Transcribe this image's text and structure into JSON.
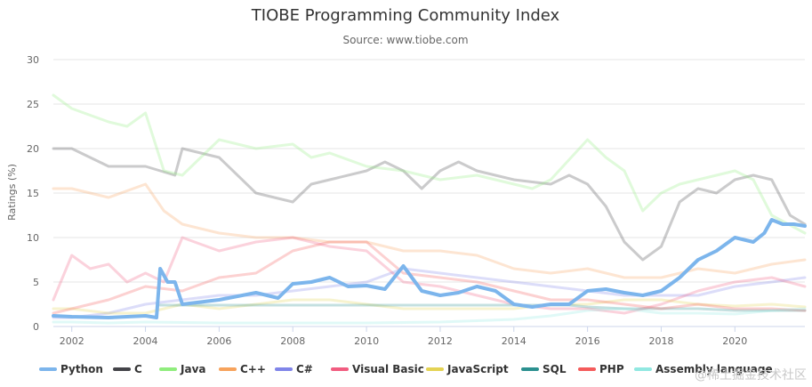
{
  "chart_data": {
    "type": "line",
    "title": "TIOBE Programming Community Index",
    "subtitle": "Source: www.tiobe.com",
    "ylabel": "Ratings (%)",
    "xlabel": "",
    "xlim": [
      2001.5,
      2021.9
    ],
    "ylim": [
      0,
      30
    ],
    "x_ticks": [
      2002,
      2004,
      2006,
      2008,
      2010,
      2012,
      2014,
      2016,
      2018,
      2020
    ],
    "y_ticks": [
      0,
      5,
      10,
      15,
      20,
      25,
      30
    ],
    "grid": true,
    "legend_position": "bottom",
    "series": [
      {
        "name": "Python",
        "color": "#7cb5ec",
        "highlight": true,
        "points": [
          [
            2001.5,
            1.2
          ],
          [
            2002,
            1.1
          ],
          [
            2003,
            1.0
          ],
          [
            2004,
            1.2
          ],
          [
            2004.3,
            1.0
          ],
          [
            2004.4,
            6.5
          ],
          [
            2004.6,
            5.0
          ],
          [
            2004.8,
            5.0
          ],
          [
            2005,
            2.5
          ],
          [
            2006,
            3.0
          ],
          [
            2007,
            3.8
          ],
          [
            2007.6,
            3.2
          ],
          [
            2008,
            4.8
          ],
          [
            2008.5,
            5.0
          ],
          [
            2009,
            5.5
          ],
          [
            2009.5,
            4.5
          ],
          [
            2010,
            4.6
          ],
          [
            2010.5,
            4.2
          ],
          [
            2011,
            6.8
          ],
          [
            2011.5,
            4.0
          ],
          [
            2012,
            3.5
          ],
          [
            2012.5,
            3.8
          ],
          [
            2013,
            4.5
          ],
          [
            2013.5,
            4.0
          ],
          [
            2014,
            2.5
          ],
          [
            2014.5,
            2.2
          ],
          [
            2015,
            2.5
          ],
          [
            2015.5,
            2.5
          ],
          [
            2016,
            4.0
          ],
          [
            2016.5,
            4.2
          ],
          [
            2017,
            3.8
          ],
          [
            2017.5,
            3.5
          ],
          [
            2018,
            4.0
          ],
          [
            2018.5,
            5.5
          ],
          [
            2019,
            7.5
          ],
          [
            2019.5,
            8.5
          ],
          [
            2020,
            10.0
          ],
          [
            2020.5,
            9.5
          ],
          [
            2020.8,
            10.5
          ],
          [
            2021,
            12.0
          ],
          [
            2021.3,
            11.5
          ],
          [
            2021.6,
            11.5
          ],
          [
            2021.9,
            11.3
          ]
        ]
      },
      {
        "name": "C",
        "color": "#434348",
        "highlight": false,
        "points": [
          [
            2001.5,
            20.0
          ],
          [
            2002,
            20.0
          ],
          [
            2002.5,
            19.0
          ],
          [
            2003,
            18.0
          ],
          [
            2004,
            18.0
          ],
          [
            2004.8,
            17.0
          ],
          [
            2005,
            20.0
          ],
          [
            2006,
            19.0
          ],
          [
            2007,
            15.0
          ],
          [
            2008,
            14.0
          ],
          [
            2008.5,
            16.0
          ],
          [
            2009,
            16.5
          ],
          [
            2010,
            17.5
          ],
          [
            2010.5,
            18.5
          ],
          [
            2011,
            17.5
          ],
          [
            2011.5,
            15.5
          ],
          [
            2012,
            17.5
          ],
          [
            2012.5,
            18.5
          ],
          [
            2013,
            17.5
          ],
          [
            2014,
            16.5
          ],
          [
            2015,
            16.0
          ],
          [
            2015.5,
            17.0
          ],
          [
            2016,
            16.0
          ],
          [
            2016.5,
            13.5
          ],
          [
            2017,
            9.5
          ],
          [
            2017.5,
            7.5
          ],
          [
            2018,
            9.0
          ],
          [
            2018.5,
            14.0
          ],
          [
            2019,
            15.5
          ],
          [
            2019.5,
            15.0
          ],
          [
            2020,
            16.5
          ],
          [
            2020.5,
            17.0
          ],
          [
            2021,
            16.5
          ],
          [
            2021.5,
            12.5
          ],
          [
            2021.9,
            11.5
          ]
        ]
      },
      {
        "name": "Java",
        "color": "#90ed7d",
        "highlight": false,
        "points": [
          [
            2001.5,
            26.0
          ],
          [
            2002,
            24.5
          ],
          [
            2003,
            23.0
          ],
          [
            2003.5,
            22.5
          ],
          [
            2004,
            24.0
          ],
          [
            2004.5,
            17.5
          ],
          [
            2005,
            17.0
          ],
          [
            2006,
            21.0
          ],
          [
            2007,
            20.0
          ],
          [
            2008,
            20.5
          ],
          [
            2008.5,
            19.0
          ],
          [
            2009,
            19.5
          ],
          [
            2010,
            18.0
          ],
          [
            2011,
            17.5
          ],
          [
            2012,
            16.5
          ],
          [
            2013,
            17.0
          ],
          [
            2014,
            16.0
          ],
          [
            2014.5,
            15.5
          ],
          [
            2015,
            16.5
          ],
          [
            2016,
            21.0
          ],
          [
            2016.5,
            19.0
          ],
          [
            2017,
            17.5
          ],
          [
            2017.5,
            13.0
          ],
          [
            2018,
            15.0
          ],
          [
            2018.5,
            16.0
          ],
          [
            2019,
            16.5
          ],
          [
            2020,
            17.5
          ],
          [
            2020.5,
            16.5
          ],
          [
            2021,
            12.5
          ],
          [
            2021.9,
            10.5
          ]
        ]
      },
      {
        "name": "C++",
        "color": "#f7a35c",
        "highlight": false,
        "points": [
          [
            2001.5,
            15.5
          ],
          [
            2002,
            15.5
          ],
          [
            2003,
            14.5
          ],
          [
            2004,
            16.0
          ],
          [
            2004.5,
            13.0
          ],
          [
            2005,
            11.5
          ],
          [
            2006,
            10.5
          ],
          [
            2007,
            10.0
          ],
          [
            2008,
            10.0
          ],
          [
            2009,
            9.5
          ],
          [
            2010,
            9.5
          ],
          [
            2011,
            8.5
          ],
          [
            2012,
            8.5
          ],
          [
            2013,
            8.0
          ],
          [
            2014,
            6.5
          ],
          [
            2015,
            6.0
          ],
          [
            2016,
            6.5
          ],
          [
            2017,
            5.5
          ],
          [
            2018,
            5.5
          ],
          [
            2019,
            6.5
          ],
          [
            2020,
            6.0
          ],
          [
            2021,
            7.0
          ],
          [
            2021.9,
            7.5
          ]
        ]
      },
      {
        "name": "C#",
        "color": "#8085e9",
        "highlight": false,
        "points": [
          [
            2001.5,
            1.0
          ],
          [
            2002,
            1.0
          ],
          [
            2003,
            1.5
          ],
          [
            2004,
            2.5
          ],
          [
            2005,
            3.0
          ],
          [
            2006,
            3.5
          ],
          [
            2007,
            3.5
          ],
          [
            2008,
            4.0
          ],
          [
            2009,
            4.5
          ],
          [
            2010,
            5.0
          ],
          [
            2011,
            6.5
          ],
          [
            2012,
            6.0
          ],
          [
            2013,
            5.5
          ],
          [
            2014,
            5.0
          ],
          [
            2015,
            4.5
          ],
          [
            2016,
            4.0
          ],
          [
            2017,
            3.5
          ],
          [
            2018,
            3.5
          ],
          [
            2019,
            3.5
          ],
          [
            2020,
            4.5
          ],
          [
            2021,
            5.0
          ],
          [
            2021.9,
            5.5
          ]
        ]
      },
      {
        "name": "Visual Basic",
        "color": "#f15c80",
        "highlight": false,
        "points": [
          [
            2001.5,
            3.0
          ],
          [
            2002,
            8.0
          ],
          [
            2002.5,
            6.5
          ],
          [
            2003,
            7.0
          ],
          [
            2003.5,
            5.0
          ],
          [
            2004,
            6.0
          ],
          [
            2004.5,
            5.0
          ],
          [
            2005,
            10.0
          ],
          [
            2006,
            8.5
          ],
          [
            2007,
            9.5
          ],
          [
            2008,
            10.0
          ],
          [
            2009,
            9.0
          ],
          [
            2010,
            8.5
          ],
          [
            2011,
            5.0
          ],
          [
            2012,
            4.5
          ],
          [
            2013,
            3.5
          ],
          [
            2014,
            2.5
          ],
          [
            2015,
            2.0
          ],
          [
            2016,
            2.0
          ],
          [
            2017,
            1.5
          ],
          [
            2018,
            2.5
          ],
          [
            2019,
            4.0
          ],
          [
            2020,
            5.0
          ],
          [
            2021,
            5.5
          ],
          [
            2021.9,
            4.5
          ]
        ]
      },
      {
        "name": "JavaScript",
        "color": "#e4d354",
        "highlight": false,
        "points": [
          [
            2001.5,
            2.0
          ],
          [
            2002,
            2.0
          ],
          [
            2003,
            1.5
          ],
          [
            2004,
            1.5
          ],
          [
            2005,
            2.5
          ],
          [
            2006,
            2.0
          ],
          [
            2007,
            2.5
          ],
          [
            2008,
            3.0
          ],
          [
            2009,
            3.0
          ],
          [
            2010,
            2.5
          ],
          [
            2011,
            2.0
          ],
          [
            2012,
            2.0
          ],
          [
            2013,
            2.0
          ],
          [
            2014,
            2.0
          ],
          [
            2015,
            2.5
          ],
          [
            2016,
            2.5
          ],
          [
            2017,
            3.0
          ],
          [
            2018,
            3.0
          ],
          [
            2019,
            2.5
          ],
          [
            2020,
            2.3
          ],
          [
            2021,
            2.5
          ],
          [
            2021.9,
            2.2
          ]
        ]
      },
      {
        "name": "SQL",
        "color": "#2b908f",
        "highlight": false,
        "points": [
          [
            2004.4,
            2.4
          ],
          [
            2015.5,
            2.4
          ],
          [
            2016,
            2.2
          ],
          [
            2017,
            2.0
          ],
          [
            2018,
            2.0
          ],
          [
            2019,
            2.0
          ],
          [
            2020,
            1.8
          ],
          [
            2021,
            1.8
          ],
          [
            2021.9,
            1.8
          ]
        ]
      },
      {
        "name": "PHP",
        "color": "#f45b5b",
        "highlight": false,
        "points": [
          [
            2001.5,
            1.5
          ],
          [
            2002,
            2.0
          ],
          [
            2003,
            3.0
          ],
          [
            2004,
            4.5
          ],
          [
            2005,
            4.0
          ],
          [
            2006,
            5.5
          ],
          [
            2007,
            6.0
          ],
          [
            2008,
            8.5
          ],
          [
            2009,
            9.5
          ],
          [
            2010,
            9.5
          ],
          [
            2011,
            6.0
          ],
          [
            2012,
            5.5
          ],
          [
            2013,
            5.0
          ],
          [
            2014,
            4.0
          ],
          [
            2015,
            3.0
          ],
          [
            2016,
            3.0
          ],
          [
            2017,
            2.5
          ],
          [
            2018,
            2.0
          ],
          [
            2019,
            2.5
          ],
          [
            2020,
            2.0
          ],
          [
            2021,
            2.0
          ],
          [
            2021.9,
            1.8
          ]
        ]
      },
      {
        "name": "Assembly language",
        "color": "#91e8e1",
        "highlight": false,
        "points": [
          [
            2001.5,
            0.5
          ],
          [
            2002,
            0.5
          ],
          [
            2003,
            0.4
          ],
          [
            2004,
            0.5
          ],
          [
            2006,
            0.4
          ],
          [
            2008,
            0.4
          ],
          [
            2010,
            0.4
          ],
          [
            2012,
            0.5
          ],
          [
            2014,
            0.8
          ],
          [
            2015,
            1.2
          ],
          [
            2016,
            1.8
          ],
          [
            2017,
            2.0
          ],
          [
            2018,
            1.5
          ],
          [
            2019,
            1.5
          ],
          [
            2020,
            1.4
          ],
          [
            2021,
            1.8
          ],
          [
            2021.9,
            2.0
          ]
        ]
      }
    ]
  },
  "watermark": "@稀土掘金技术社区"
}
